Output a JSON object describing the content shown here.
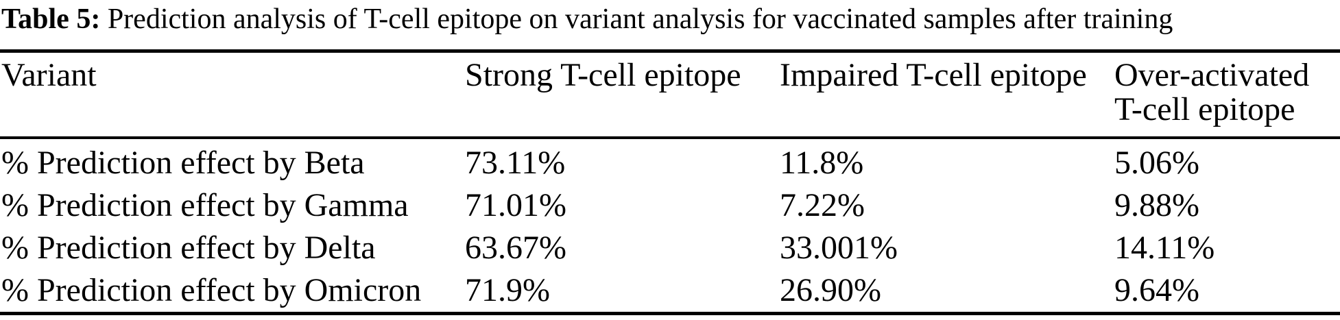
{
  "page": {
    "background_color": "#ffffff",
    "text_color": "#000000",
    "rule_color": "#000000"
  },
  "caption": {
    "label": "Table 5:",
    "text": "Prediction analysis of T-cell epitope on variant analysis for vaccinated samples after training"
  },
  "table": {
    "headers": {
      "variant": "Variant",
      "strong": "Strong T-cell epitope",
      "impaired": "Impaired T-cell epitope",
      "overactivated": "Over-activated T-cell epitope"
    },
    "rows": [
      {
        "variant": "% Prediction effect by Beta",
        "strong": "73.11%",
        "impaired": "11.8%",
        "overactivated": "5.06%"
      },
      {
        "variant": "% Prediction effect by Gamma",
        "strong": "71.01%",
        "impaired": "7.22%",
        "overactivated": "9.88%"
      },
      {
        "variant": "% Prediction effect by Delta",
        "strong": "63.67%",
        "impaired": "33.001%",
        "overactivated": "14.11%"
      },
      {
        "variant": "% Prediction effect by Omicron",
        "strong": "71.9%",
        "impaired": "26.90%",
        "overactivated": "9.64%"
      }
    ]
  }
}
